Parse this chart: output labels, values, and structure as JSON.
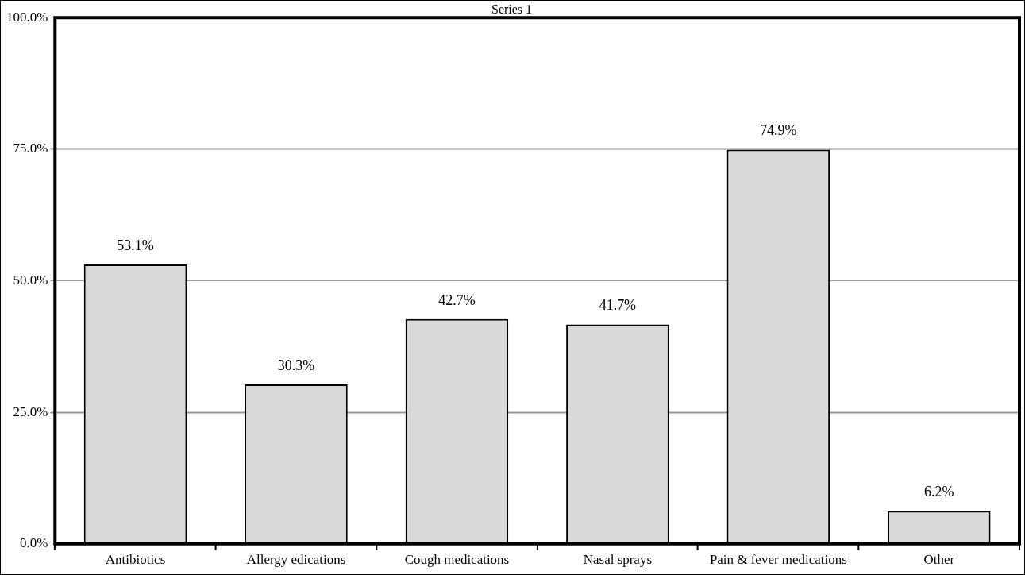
{
  "chart_data": {
    "type": "bar",
    "title": "Series 1",
    "categories": [
      "Antibiotics",
      "Allergy edications",
      "Cough medications",
      "Nasal sprays",
      "Pain & fever medications",
      "Other"
    ],
    "values": [
      53.1,
      30.3,
      42.7,
      41.7,
      74.9,
      6.2
    ],
    "value_labels": [
      "53.1%",
      "30.3%",
      "42.7%",
      "41.7%",
      "74.9%",
      "6.2%"
    ],
    "color": "#d9d9d9",
    "ylim": [
      0,
      100
    ],
    "yticks": [
      {
        "value": 0,
        "label": "0.0%"
      },
      {
        "value": 25,
        "label": "25.0%"
      },
      {
        "value": 50,
        "label": "50.0%"
      },
      {
        "value": 75,
        "label": "75.0%"
      },
      {
        "value": 100,
        "label": "100.0%"
      }
    ],
    "grid": "y",
    "legend": false
  }
}
